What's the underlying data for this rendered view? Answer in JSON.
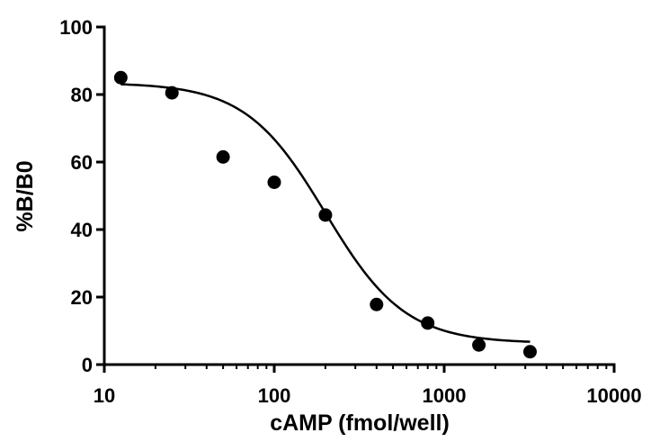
{
  "chart_data": {
    "type": "scatter",
    "title": "",
    "xlabel": "cAMP (fmol/well)",
    "ylabel": "%B/B0",
    "xscale": "log",
    "xlim": [
      10,
      10000
    ],
    "ylim": [
      0,
      100
    ],
    "x_ticks": [
      10,
      100,
      1000,
      10000
    ],
    "x_tick_labels": [
      "10",
      "100",
      "1000",
      "10000"
    ],
    "y_ticks": [
      0,
      20,
      40,
      60,
      80,
      100
    ],
    "y_tick_labels": [
      "0",
      "20",
      "40",
      "60",
      "80",
      "100"
    ],
    "grid": false,
    "legend": "none",
    "series": [
      {
        "type": "scatter",
        "x": [
          12.5,
          25,
          50,
          100,
          200,
          400,
          800,
          1600,
          3200
        ],
        "y": [
          85,
          80.5,
          61.5,
          54,
          44.3,
          17.8,
          12.3,
          5.8,
          3.8
        ]
      }
    ],
    "fit": {
      "type": "four-parameter logistic",
      "top": 83.5,
      "bottom": 6.3,
      "ec50": 200,
      "hill": 1.85,
      "x_range": [
        12.5,
        3200
      ]
    }
  }
}
